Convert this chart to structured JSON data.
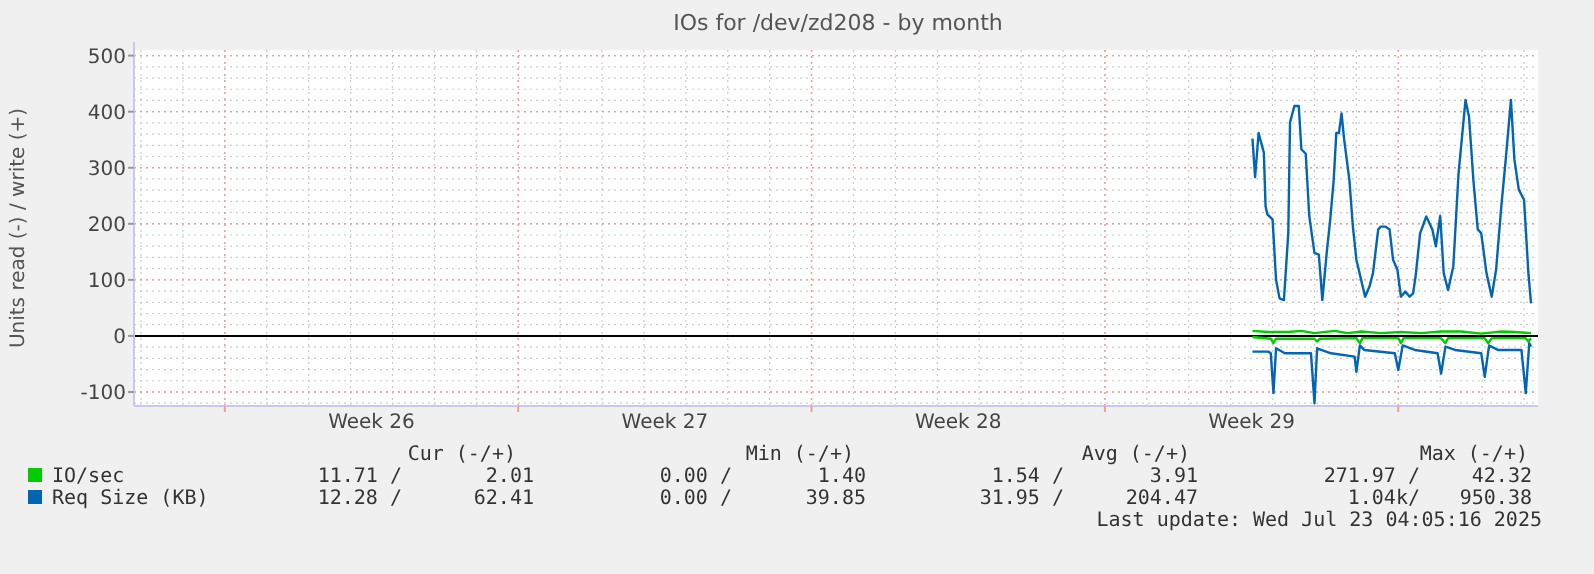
{
  "chart_data": {
    "type": "line",
    "title": "IOs for /dev/zd208 - by month",
    "ylabel": "Units read (-) / write (+)",
    "xlim": [
      "2025-06-19T20:00",
      "2025-07-23T08:00"
    ],
    "xticks": [
      {
        "value": "2025-06-22T00:00",
        "label": null
      },
      {
        "value": "2025-06-25T12:00",
        "label": "Week 26"
      },
      {
        "value": "2025-06-29T00:00",
        "label": null
      },
      {
        "value": "2025-07-02T12:00",
        "label": "Week 27"
      },
      {
        "value": "2025-07-06T00:00",
        "label": null
      },
      {
        "value": "2025-07-09T12:00",
        "label": "Week 28"
      },
      {
        "value": "2025-07-13T00:00",
        "label": null
      },
      {
        "value": "2025-07-16T12:00",
        "label": "Week 29"
      },
      {
        "value": "2025-07-20T00:00",
        "label": null
      }
    ],
    "ylim": [
      -125,
      510
    ],
    "yticks": [
      -100,
      0,
      100,
      200,
      300,
      400,
      500
    ],
    "grid": true,
    "legend": "bottom",
    "ref_lines": [
      {
        "axis": "y",
        "value": 0,
        "color": "#000000"
      }
    ],
    "series": [
      {
        "name": "IO/sec",
        "color": "#00cc00",
        "x": [
          "2025-07-16T12:30",
          "2025-07-16T21:30",
          "2025-07-17T09:00",
          "2025-07-17T16:30",
          "2025-07-18T00:00",
          "2025-07-18T11:30",
          "2025-07-18T19:00",
          "2025-07-19T03:00",
          "2025-07-19T14:00",
          "2025-07-20T01:30",
          "2025-07-20T13:00",
          "2025-07-21T00:30",
          "2025-07-21T12:00",
          "2025-07-21T23:30",
          "2025-07-22T11:00",
          "2025-07-22T18:30",
          "2025-07-23T04:00"
        ],
        "values": [
          9,
          7,
          7,
          9,
          5,
          9,
          5,
          8,
          5,
          7,
          5,
          8,
          8,
          4,
          8,
          7,
          5
        ]
      },
      {
        "color": "#00cc00",
        "x": [
          "2025-07-16T12:30",
          "2025-07-16T23:00",
          "2025-07-17T00:30",
          "2025-07-17T02:00",
          "2025-07-18T00:00",
          "2025-07-18T01:30",
          "2025-07-18T03:00",
          "2025-07-19T00:00",
          "2025-07-19T02:00",
          "2025-07-19T03:30",
          "2025-07-20T00:00",
          "2025-07-20T01:30",
          "2025-07-20T03:00",
          "2025-07-21T00:30",
          "2025-07-21T03:00",
          "2025-07-21T04:30",
          "2025-07-22T01:30",
          "2025-07-22T03:30",
          "2025-07-22T05:30",
          "2025-07-23T01:00",
          "2025-07-23T02:30",
          "2025-07-23T04:00"
        ],
        "values": [
          -2,
          -5,
          -13,
          -5,
          -5,
          -10,
          -5,
          -4,
          -13,
          -4,
          -4,
          -13,
          -4,
          -4,
          -13,
          -4,
          -4,
          -13,
          -4,
          -4,
          -10,
          -4
        ]
      },
      {
        "name": "Req Size (KB)",
        "color": "#0066b3",
        "x": [
          "2025-07-16T12:30",
          "2025-07-16T14:00",
          "2025-07-16T16:00",
          "2025-07-16T19:00",
          "2025-07-16T20:00",
          "2025-07-16T21:00",
          "2025-07-17T00:00",
          "2025-07-17T02:00",
          "2025-07-17T04:00",
          "2025-07-17T06:30",
          "2025-07-17T09:00",
          "2025-07-17T10:00",
          "2025-07-17T12:30",
          "2025-07-17T15:00",
          "2025-07-17T16:30",
          "2025-07-17T19:00",
          "2025-07-17T21:00",
          "2025-07-18T00:00",
          "2025-07-18T02:30",
          "2025-07-18T04:30",
          "2025-07-18T07:00",
          "2025-07-18T09:00",
          "2025-07-18T11:00",
          "2025-07-18T12:30",
          "2025-07-18T14:00",
          "2025-07-18T15:30",
          "2025-07-18T17:00",
          "2025-07-18T20:00",
          "2025-07-18T22:00",
          "2025-07-19T00:00",
          "2025-07-19T05:00",
          "2025-07-19T07:30",
          "2025-07-19T09:30",
          "2025-07-19T12:30",
          "2025-07-19T14:00",
          "2025-07-19T16:30",
          "2025-07-19T19:00",
          "2025-07-19T21:00",
          "2025-07-19T23:30",
          "2025-07-20T01:30",
          "2025-07-20T04:00",
          "2025-07-20T06:30",
          "2025-07-20T08:30",
          "2025-07-20T10:00",
          "2025-07-20T12:30",
          "2025-07-20T16:00",
          "2025-07-20T19:30",
          "2025-07-20T21:30",
          "2025-07-21T00:00",
          "2025-07-21T02:00",
          "2025-07-21T04:30",
          "2025-07-21T07:30",
          "2025-07-21T10:30",
          "2025-07-21T14:30",
          "2025-07-21T16:30",
          "2025-07-21T19:00",
          "2025-07-21T21:30",
          "2025-07-21T23:30",
          "2025-07-22T02:30",
          "2025-07-22T05:30",
          "2025-07-22T08:00",
          "2025-07-22T11:00",
          "2025-07-22T13:30",
          "2025-07-22T16:30",
          "2025-07-22T18:30",
          "2025-07-22T21:00",
          "2025-07-23T00:00",
          "2025-07-23T02:30",
          "2025-07-23T04:00"
        ],
        "values": [
          352,
          283,
          362,
          327,
          231,
          217,
          208,
          100,
          67,
          64,
          183,
          381,
          410,
          410,
          333,
          325,
          214,
          148,
          145,
          64,
          148,
          207,
          278,
          362,
          362,
          397,
          350,
          278,
          195,
          136,
          70,
          88,
          112,
          190,
          195,
          195,
          190,
          136,
          118,
          70,
          79,
          70,
          76,
          109,
          183,
          213,
          190,
          160,
          214,
          112,
          82,
          124,
          290,
          421,
          391,
          278,
          190,
          183,
          112,
          70,
          118,
          231,
          314,
          421,
          314,
          261,
          243,
          112,
          58
        ]
      },
      {
        "color": "#0066b3",
        "x": [
          "2025-07-16T12:30",
          "2025-07-16T21:30",
          "2025-07-16T23:00",
          "2025-07-17T00:30",
          "2025-07-17T02:00",
          "2025-07-17T07:00",
          "2025-07-17T22:00",
          "2025-07-18T00:00",
          "2025-07-18T01:30",
          "2025-07-18T09:30",
          "2025-07-18T23:00",
          "2025-07-19T00:00",
          "2025-07-19T02:00",
          "2025-07-19T04:30",
          "2025-07-19T22:00",
          "2025-07-20T00:00",
          "2025-07-20T02:30",
          "2025-07-20T09:30",
          "2025-07-20T22:30",
          "2025-07-21T00:30",
          "2025-07-21T03:00",
          "2025-07-21T08:30",
          "2025-07-21T23:30",
          "2025-07-22T01:30",
          "2025-07-22T04:00",
          "2025-07-22T09:00",
          "2025-07-22T22:30",
          "2025-07-23T01:00",
          "2025-07-23T03:00",
          "2025-07-23T04:00"
        ],
        "values": [
          -28,
          -28,
          -31,
          -102,
          -22,
          -31,
          -31,
          -120,
          -22,
          -31,
          -37,
          -64,
          -17,
          -25,
          -31,
          -61,
          -17,
          -25,
          -31,
          -67,
          -19,
          -25,
          -31,
          -73,
          -17,
          -25,
          -25,
          -102,
          -13,
          -19
        ]
      }
    ],
    "annotations": [
      "Cur (-/+)",
      "Min (-/+)",
      "Avg (-/+)",
      "Max (-/+)",
      "11.71 /",
      "2.01",
      "0.00 /",
      "1.40",
      "1.54 /",
      "3.91",
      "271.97 /",
      "42.32",
      "12.28 /",
      "62.41",
      "0.00 /",
      "39.85",
      "31.95 /",
      "204.47",
      "1.04k/",
      "950.38",
      "Last update: Wed Jul 23 04:05:16 2025"
    ]
  }
}
